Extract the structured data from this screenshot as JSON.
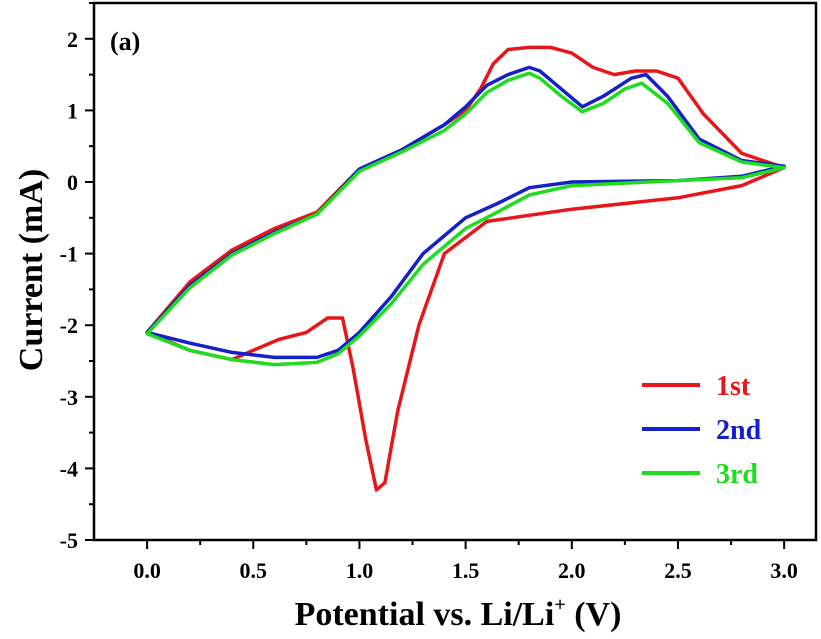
{
  "chart_data": {
    "type": "line",
    "panel_label": "(a)",
    "xlabel": "Potential vs. Li/Li",
    "xlabel_sup": "+",
    "xlabel_unit": " (V)",
    "ylabel": "Current (mA)",
    "xlim": [
      -0.25,
      3.15
    ],
    "ylim": [
      -5,
      2.5
    ],
    "x_ticks": [
      0.0,
      0.5,
      1.0,
      1.5,
      2.0,
      2.5,
      3.0
    ],
    "x_tick_labels": [
      "0.0",
      "0.5",
      "1.0",
      "1.5",
      "2.0",
      "2.5",
      "3.0"
    ],
    "y_ticks": [
      -5,
      -4,
      -3,
      -2,
      -1,
      0,
      1,
      2
    ],
    "y_tick_labels": [
      "-5",
      "-4",
      "-3",
      "-2",
      "-1",
      "0",
      "1",
      "2"
    ],
    "grid": false,
    "legend_position": "bottom-right",
    "series": [
      {
        "name": "1st",
        "color": "#e8161b",
        "points": [
          [
            3.0,
            0.2
          ],
          [
            2.8,
            0.4
          ],
          [
            2.62,
            0.95
          ],
          [
            2.5,
            1.45
          ],
          [
            2.4,
            1.55
          ],
          [
            2.3,
            1.55
          ],
          [
            2.2,
            1.5
          ],
          [
            2.1,
            1.6
          ],
          [
            2.0,
            1.8
          ],
          [
            1.9,
            1.88
          ],
          [
            1.8,
            1.88
          ],
          [
            1.7,
            1.85
          ],
          [
            1.63,
            1.65
          ],
          [
            1.57,
            1.3
          ],
          [
            1.5,
            1.0
          ],
          [
            1.4,
            0.8
          ],
          [
            1.2,
            0.45
          ],
          [
            1.0,
            0.18
          ],
          [
            0.8,
            -0.42
          ],
          [
            0.6,
            -0.65
          ],
          [
            0.4,
            -0.95
          ],
          [
            0.2,
            -1.4
          ],
          [
            0.0,
            -2.1
          ],
          [
            0.2,
            -2.35
          ],
          [
            0.4,
            -2.48
          ],
          [
            0.5,
            -2.35
          ],
          [
            0.62,
            -2.2
          ],
          [
            0.75,
            -2.1
          ],
          [
            0.85,
            -1.9
          ],
          [
            0.92,
            -1.9
          ],
          [
            0.97,
            -2.6
          ],
          [
            1.03,
            -3.6
          ],
          [
            1.08,
            -4.3
          ],
          [
            1.12,
            -4.2
          ],
          [
            1.18,
            -3.2
          ],
          [
            1.28,
            -2.0
          ],
          [
            1.4,
            -1.0
          ],
          [
            1.6,
            -0.55
          ],
          [
            2.0,
            -0.38
          ],
          [
            2.5,
            -0.22
          ],
          [
            2.8,
            -0.05
          ],
          [
            3.0,
            0.2
          ]
        ]
      },
      {
        "name": "2nd",
        "color": "#1420c8",
        "points": [
          [
            3.0,
            0.22
          ],
          [
            2.8,
            0.3
          ],
          [
            2.6,
            0.6
          ],
          [
            2.45,
            1.2
          ],
          [
            2.35,
            1.5
          ],
          [
            2.28,
            1.45
          ],
          [
            2.15,
            1.2
          ],
          [
            2.05,
            1.05
          ],
          [
            1.95,
            1.3
          ],
          [
            1.85,
            1.55
          ],
          [
            1.8,
            1.6
          ],
          [
            1.7,
            1.5
          ],
          [
            1.6,
            1.35
          ],
          [
            1.5,
            1.05
          ],
          [
            1.4,
            0.8
          ],
          [
            1.2,
            0.45
          ],
          [
            1.0,
            0.18
          ],
          [
            0.8,
            -0.45
          ],
          [
            0.6,
            -0.7
          ],
          [
            0.4,
            -1.0
          ],
          [
            0.2,
            -1.45
          ],
          [
            0.0,
            -2.1
          ],
          [
            0.2,
            -2.25
          ],
          [
            0.4,
            -2.38
          ],
          [
            0.6,
            -2.45
          ],
          [
            0.8,
            -2.45
          ],
          [
            0.9,
            -2.35
          ],
          [
            1.0,
            -2.1
          ],
          [
            1.15,
            -1.6
          ],
          [
            1.3,
            -1.0
          ],
          [
            1.5,
            -0.5
          ],
          [
            1.65,
            -0.3
          ],
          [
            1.8,
            -0.08
          ],
          [
            2.0,
            0.0
          ],
          [
            2.5,
            0.02
          ],
          [
            2.8,
            0.08
          ],
          [
            3.0,
            0.22
          ]
        ]
      },
      {
        "name": "3rd",
        "color": "#1fdc1f",
        "points": [
          [
            3.0,
            0.2
          ],
          [
            2.8,
            0.28
          ],
          [
            2.6,
            0.55
          ],
          [
            2.45,
            1.1
          ],
          [
            2.33,
            1.38
          ],
          [
            2.25,
            1.3
          ],
          [
            2.15,
            1.1
          ],
          [
            2.05,
            0.98
          ],
          [
            1.95,
            1.2
          ],
          [
            1.85,
            1.45
          ],
          [
            1.8,
            1.52
          ],
          [
            1.7,
            1.42
          ],
          [
            1.6,
            1.25
          ],
          [
            1.5,
            0.95
          ],
          [
            1.4,
            0.72
          ],
          [
            1.2,
            0.42
          ],
          [
            1.0,
            0.15
          ],
          [
            0.8,
            -0.45
          ],
          [
            0.6,
            -0.72
          ],
          [
            0.4,
            -1.02
          ],
          [
            0.2,
            -1.48
          ],
          [
            0.0,
            -2.12
          ],
          [
            0.2,
            -2.35
          ],
          [
            0.4,
            -2.48
          ],
          [
            0.6,
            -2.55
          ],
          [
            0.8,
            -2.52
          ],
          [
            0.9,
            -2.4
          ],
          [
            1.0,
            -2.15
          ],
          [
            1.15,
            -1.7
          ],
          [
            1.3,
            -1.15
          ],
          [
            1.5,
            -0.65
          ],
          [
            1.65,
            -0.42
          ],
          [
            1.8,
            -0.18
          ],
          [
            2.0,
            -0.05
          ],
          [
            2.5,
            0.02
          ],
          [
            2.8,
            0.06
          ],
          [
            3.0,
            0.2
          ]
        ]
      }
    ]
  }
}
